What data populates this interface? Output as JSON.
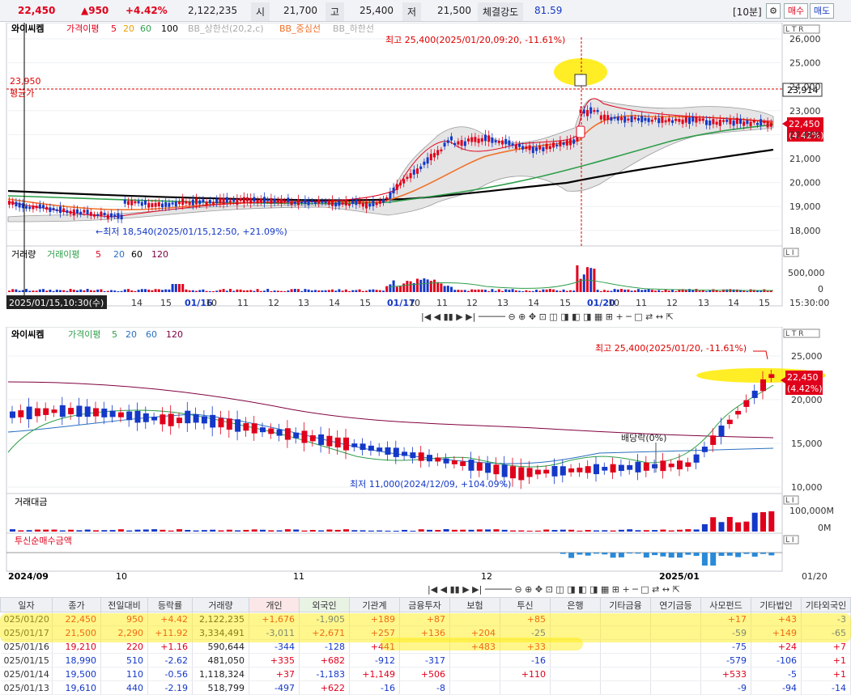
{
  "topbar": {
    "price": "22,450",
    "change": "▲950",
    "pct": "+4.42%",
    "volume": "2,122,235",
    "open_label": "시",
    "open": "21,700",
    "high_label": "고",
    "high": "25,400",
    "low_label": "저",
    "low": "21,500",
    "strength_label": "체결강도",
    "strength": "81.59",
    "period": "[10분]",
    "buy": "매수",
    "sell": "매도"
  },
  "chart1": {
    "legend": [
      "와이씨켐",
      "가격이평",
      "5",
      "20",
      "60",
      "100",
      "BB_상한선(20,2,c)",
      "BB_중심선",
      "BB_하한선"
    ],
    "yticks": [
      "26,000",
      "25,000",
      "24,000",
      "23,000",
      "22,000",
      "21,000",
      "20,000",
      "19,000",
      "18,000"
    ],
    "high_note": "최고 25,400(2025/01/20,09:20, -11.61%)",
    "low_note": "←최저 18,540(2025/01/15,12:50, +21.09%)",
    "avg_price": "23,950",
    "avg_label": "평균가",
    "avg_box": "23,914",
    "cur_price": "22,450",
    "cur_pct": "(4.42%)",
    "volume_legend": [
      "거래량",
      "거래이평",
      "5",
      "20",
      "60",
      "120"
    ],
    "vol_ticks": [
      "500,000",
      "0"
    ],
    "xticks": [
      "14",
      "15",
      "01/16",
      "10",
      "11",
      "12",
      "13",
      "14",
      "15",
      "01/17",
      "10",
      "11",
      "12",
      "13",
      "14",
      "15",
      "01/20",
      "10",
      "11",
      "12",
      "13",
      "14",
      "15"
    ],
    "cursor_time": "2025/01/15,10:30(수)",
    "time_box": "15:30:00"
  },
  "chart2": {
    "legend": [
      "와이씨켐",
      "가격이평",
      "5",
      "20",
      "60",
      "120"
    ],
    "yticks": [
      "25,000",
      "20,000",
      "15,000",
      "10,000"
    ],
    "high_note": "최고 25,400(2025/01/20, -11.61%)",
    "low_note": "최저 11,000(2024/12/09, +104.09%)",
    "dividend": "배당락(0%)",
    "cur_price": "22,450",
    "cur_pct": "(4.42%)",
    "amount_label": "거래대금",
    "amount_ticks": [
      "100,000M",
      "0M"
    ],
    "trust_label": "투신순매수금액",
    "xticks": [
      "2024/09",
      "10",
      "11",
      "12",
      "2025/01"
    ],
    "date_box": "01/20"
  },
  "table": {
    "headers": [
      "일자",
      "종가",
      "전일대비",
      "등락률",
      "거래량",
      "개인",
      "외국인",
      "기관계",
      "금융투자",
      "보험",
      "투신",
      "은행",
      "기타금융",
      "연기금등",
      "사모펀드",
      "기타법인",
      "기타외국인"
    ],
    "rows": [
      [
        "025/01/20",
        "22,450",
        "950",
        "+4.42",
        "2,122,235",
        "+1,676",
        "-1,905",
        "+189",
        "+87",
        "",
        "+85",
        "",
        "",
        "",
        "+17",
        "+43",
        "-3"
      ],
      [
        "025/01/17",
        "21,500",
        "2,290",
        "+11.92",
        "3,334,491",
        "-3,011",
        "+2,671",
        "+257",
        "+136",
        "+204",
        "-25",
        "",
        "",
        "",
        "-59",
        "+149",
        "-65"
      ],
      [
        "025/01/16",
        "19,210",
        "220",
        "+1.16",
        "590,644",
        "-344",
        "-128",
        "+441",
        "",
        "+483",
        "+33",
        "",
        "",
        "",
        "-75",
        "+24",
        "+7"
      ],
      [
        "025/01/15",
        "18,990",
        "510",
        "-2.62",
        "481,050",
        "+335",
        "+682",
        "-912",
        "-317",
        "",
        "-16",
        "",
        "",
        "",
        "-579",
        "-106",
        "+1"
      ],
      [
        "025/01/14",
        "19,500",
        "110",
        "-0.56",
        "1,118,324",
        "+37",
        "-1,183",
        "+1,149",
        "+506",
        "",
        "+110",
        "",
        "",
        "",
        "+533",
        "-5",
        "+1"
      ],
      [
        "025/01/13",
        "19,610",
        "440",
        "-2.19",
        "518,799",
        "-497",
        "+622",
        "-16",
        "-8",
        "",
        "",
        "",
        "",
        "",
        "-9",
        "-94",
        "-14"
      ]
    ]
  }
}
